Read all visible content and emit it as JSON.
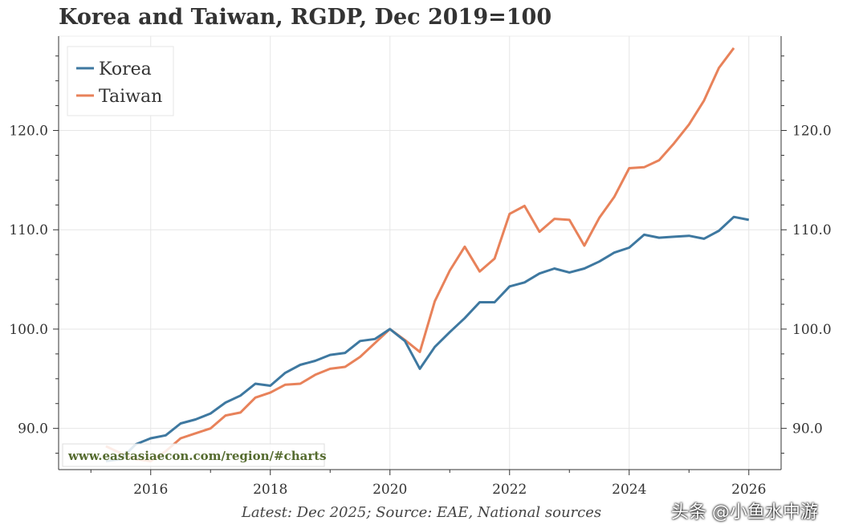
{
  "chart_data": {
    "type": "line",
    "title": "Korea and Taiwan, RGDP, Dec 2019=100",
    "xlabel": "",
    "ylabel": "",
    "xlim": [
      2014.46,
      2026.54
    ],
    "ylim": [
      85.85,
      129.5
    ],
    "x_ticks": [
      "2016",
      "2018",
      "2020",
      "2022",
      "2024",
      "2026"
    ],
    "y_ticks": [
      "90.0",
      "100.0",
      "110.0",
      "120.0"
    ],
    "grid": true,
    "legend": "top-left",
    "series": [
      {
        "name": "Korea",
        "color": "#3e78a0",
        "x": [
          2015.25,
          2015.5,
          2015.75,
          2016,
          2016.25,
          2016.5,
          2016.75,
          2017,
          2017.25,
          2017.5,
          2017.75,
          2018,
          2018.25,
          2018.5,
          2018.75,
          2019,
          2019.25,
          2019.5,
          2019.75,
          2020,
          2020.25,
          2020.5,
          2020.75,
          2021,
          2021.25,
          2021.5,
          2021.75,
          2022,
          2022.25,
          2022.5,
          2022.75,
          2023,
          2023.25,
          2023.5,
          2023.75,
          2024,
          2024.25,
          2024.5,
          2024.75,
          2025,
          2025.25,
          2025.5,
          2025.75,
          2026
        ],
        "values": [
          86.7,
          86.9,
          88.4,
          89.0,
          89.3,
          90.5,
          90.9,
          91.5,
          92.6,
          93.3,
          94.5,
          94.3,
          95.6,
          96.4,
          96.8,
          97.4,
          97.6,
          98.8,
          99.0,
          100.0,
          98.8,
          96.0,
          98.2,
          99.7,
          101.1,
          102.7,
          102.7,
          104.3,
          104.7,
          105.6,
          106.1,
          105.7,
          106.1,
          106.8,
          107.7,
          108.2,
          109.5,
          109.2,
          109.3,
          109.4,
          109.1,
          109.9,
          111.3,
          111.0
        ]
      },
      {
        "name": "Taiwan",
        "color": "#e8825a",
        "x": [
          2015.25,
          2015.5,
          2015.75,
          2016,
          2016.25,
          2016.5,
          2016.75,
          2017,
          2017.25,
          2017.5,
          2017.75,
          2018,
          2018.25,
          2018.5,
          2018.75,
          2019,
          2019.25,
          2019.5,
          2019.75,
          2020,
          2020.25,
          2020.5,
          2020.75,
          2021,
          2021.25,
          2021.5,
          2021.75,
          2022,
          2022.25,
          2022.5,
          2022.75,
          2023,
          2023.25,
          2023.5,
          2023.75,
          2024,
          2024.25,
          2024.5,
          2024.75,
          2025,
          2025.25,
          2025.5,
          2025.75
        ],
        "values": [
          88.2,
          87.5,
          86.9,
          86.7,
          87.7,
          89.0,
          89.5,
          90.0,
          91.3,
          91.6,
          93.1,
          93.6,
          94.4,
          94.5,
          95.4,
          96.0,
          96.2,
          97.2,
          98.6,
          100.0,
          98.9,
          97.7,
          102.8,
          105.9,
          108.3,
          105.8,
          107.1,
          111.6,
          112.4,
          109.8,
          111.1,
          111.0,
          108.4,
          111.2,
          113.3,
          116.2,
          116.3,
          117.0,
          118.7,
          120.6,
          123.0,
          126.3,
          128.3
        ]
      }
    ],
    "annotation": "www.eastasiaecon.com/region/#charts",
    "footer": "Latest: Dec 2025; Source: EAE, National sources"
  },
  "watermark": "头条 @小鱼水中游"
}
